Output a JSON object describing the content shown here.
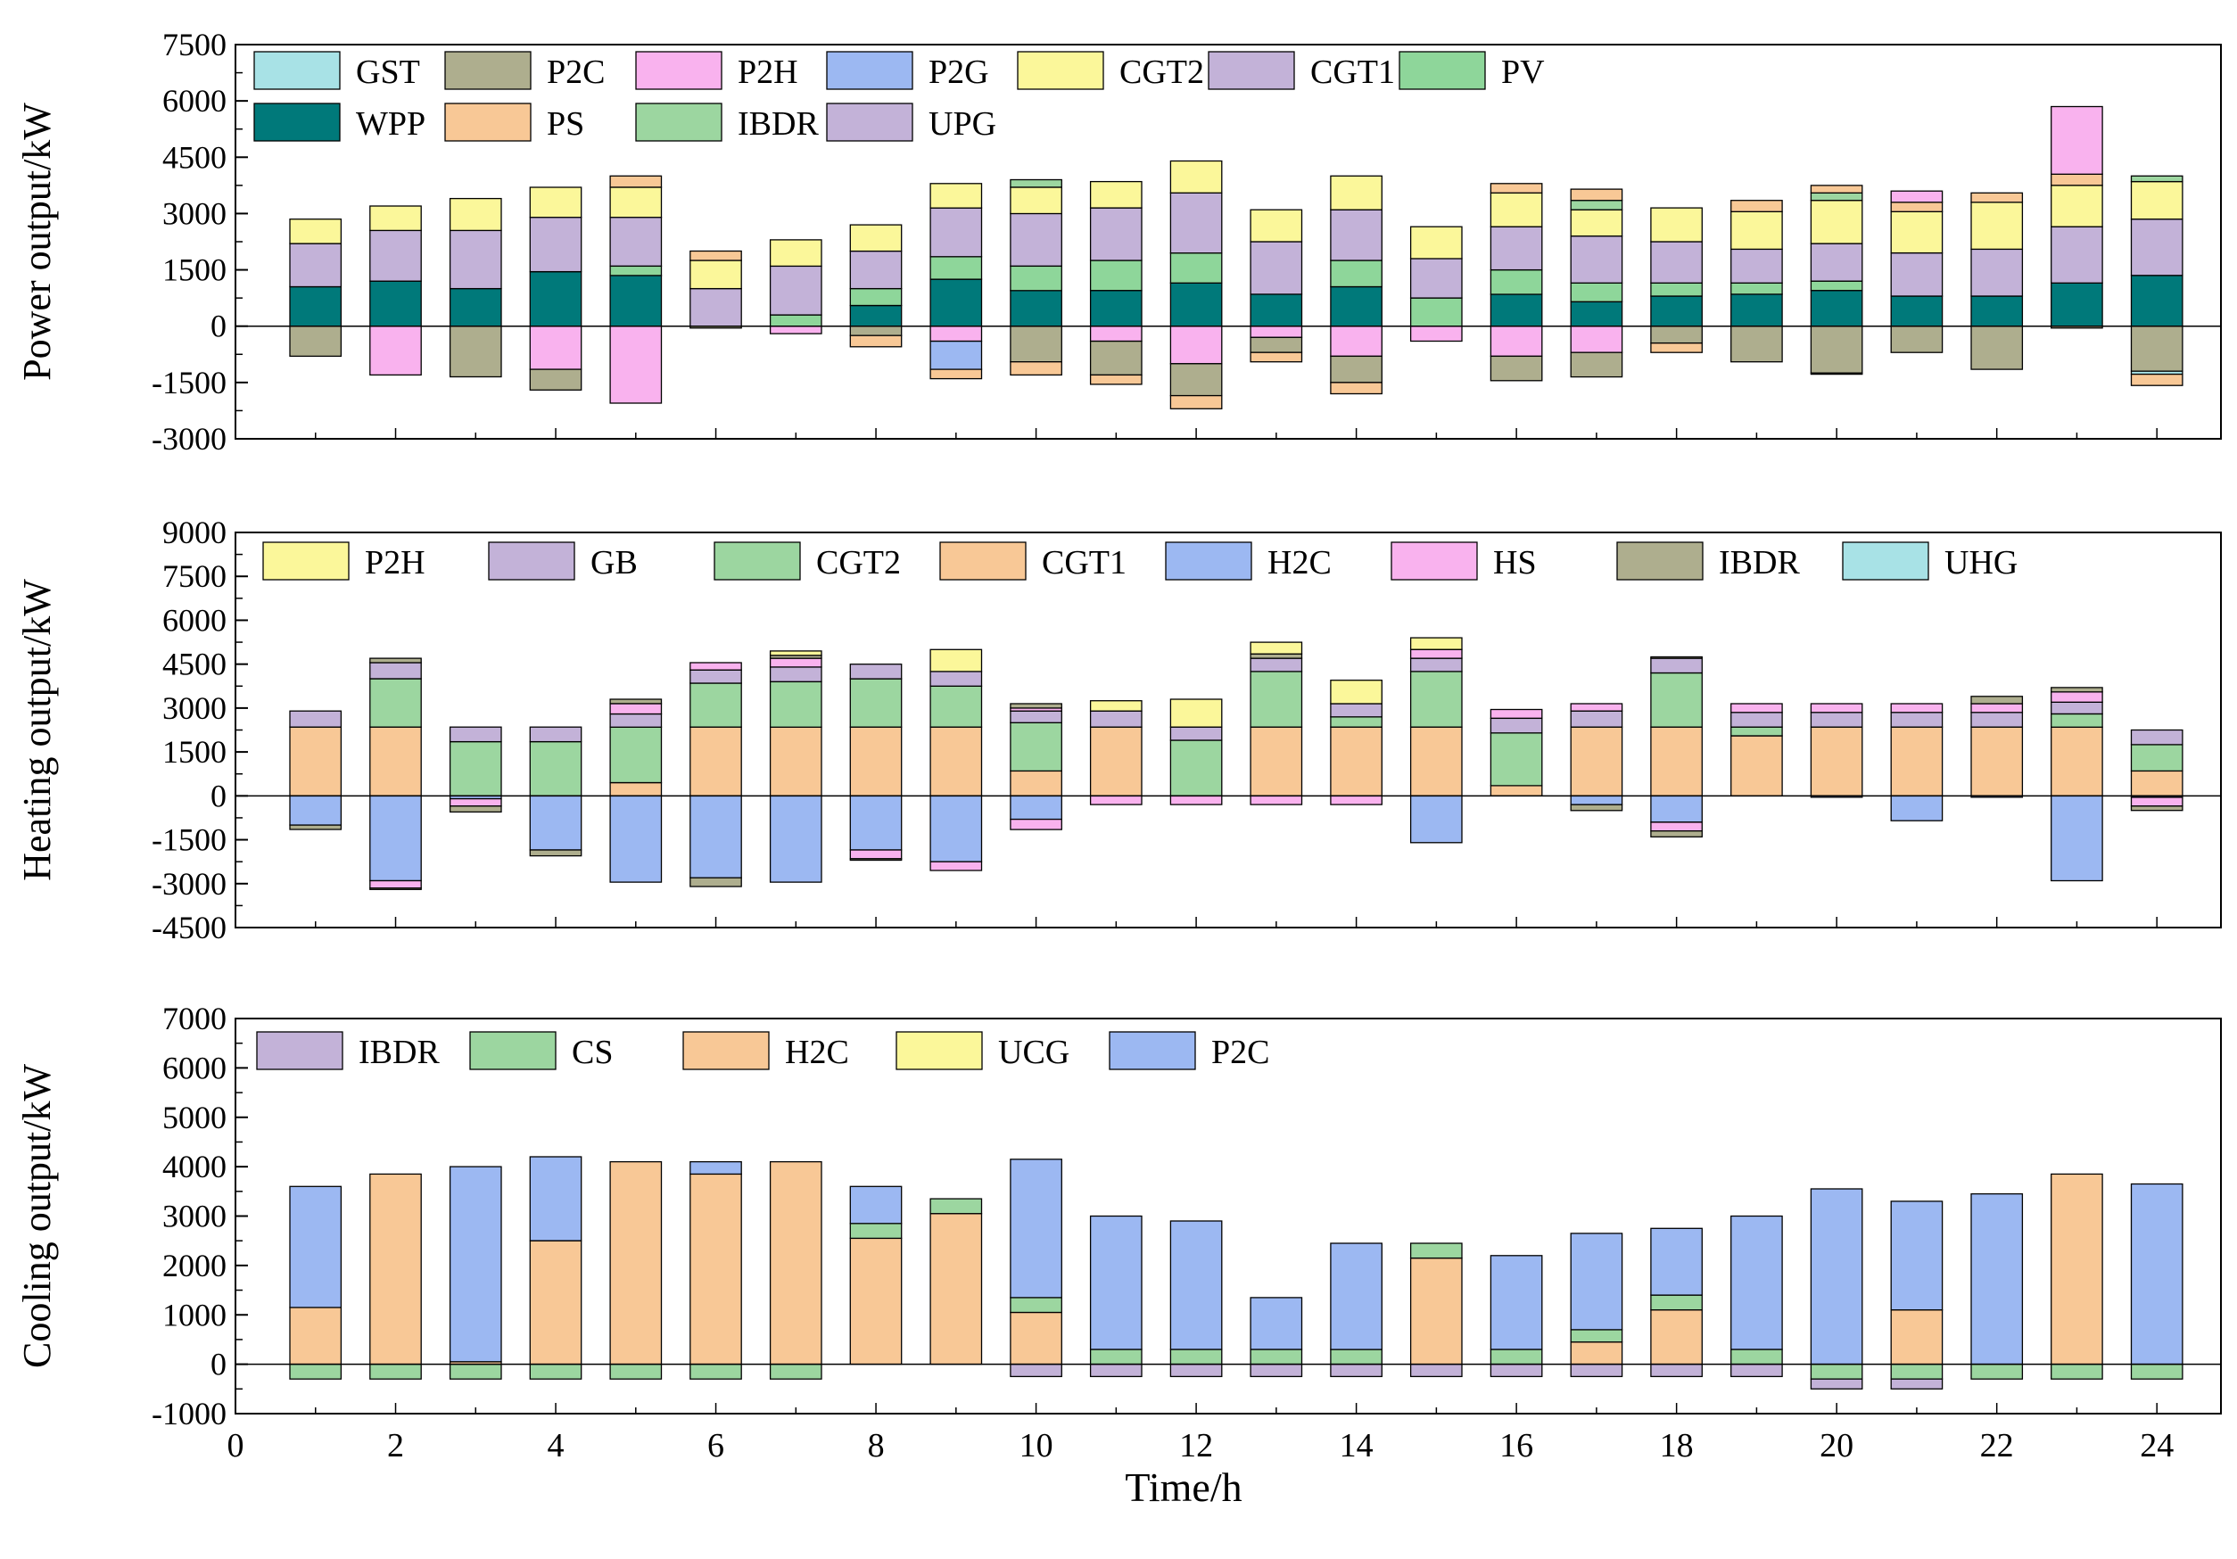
{
  "colors": {
    "GST": "#a8e2e6",
    "P2C": "#aeae8e",
    "P2H": "#f9b2ee",
    "P2G": "#9cb8f2",
    "CGT2": "#fbf79a",
    "CGT1": "#c3b2d8",
    "PV": "#8ed69a",
    "WPP": "#00797a",
    "PS": "#f8c896",
    "IBDR": "#9cd6a0",
    "UPG": "#c3b2d8",
    "H_P2H": "#fbf79a",
    "H_GB": "#c3b2d8",
    "H_CGT2": "#9cd6a0",
    "H_CGT1": "#f8c896",
    "H_H2C": "#9cb8f2",
    "H_HS": "#f9b2ee",
    "H_IBDR": "#aeae8e",
    "H_UHG": "#a8e2e6",
    "C_IBDR": "#c3b2d8",
    "C_CS": "#9cd6a0",
    "C_H2C": "#f8c896",
    "C_UCG": "#fbf79a",
    "C_P2C": "#9cb8f2"
  },
  "chart_data": [
    {
      "type": "bar",
      "id": "power",
      "title": "",
      "ylabel": "Power output/kW",
      "xlabel": "",
      "ylim": [
        -3000,
        7500
      ],
      "yticks": [
        -3000,
        -1500,
        0,
        1500,
        3000,
        4500,
        6000,
        7500
      ],
      "x": [
        1,
        2,
        3,
        4,
        5,
        6,
        7,
        8,
        9,
        10,
        11,
        12,
        13,
        14,
        15,
        16,
        17,
        18,
        19,
        20,
        21,
        22,
        23,
        24
      ],
      "legend": [
        {
          "name": "GST",
          "color": "GST"
        },
        {
          "name": "P2C",
          "color": "P2C"
        },
        {
          "name": "P2H",
          "color": "P2H"
        },
        {
          "name": "P2G",
          "color": "P2G"
        },
        {
          "name": "CGT2",
          "color": "CGT2"
        },
        {
          "name": "CGT1",
          "color": "CGT1"
        },
        {
          "name": "PV",
          "color": "PV"
        },
        {
          "name": "WPP",
          "color": "WPP"
        },
        {
          "name": "PS",
          "color": "PS"
        },
        {
          "name": "IBDR",
          "color": "IBDR"
        },
        {
          "name": "UPG",
          "color": "UPG"
        }
      ],
      "positive_series": [
        {
          "name": "WPP",
          "color": "WPP",
          "values": [
            1050,
            1200,
            1000,
            1450,
            1350,
            0,
            0,
            550,
            1250,
            950,
            950,
            1150,
            850,
            1050,
            0,
            850,
            650,
            800,
            850,
            950,
            800,
            800,
            1150,
            1350
          ]
        },
        {
          "name": "PV",
          "color": "PV",
          "values": [
            0,
            0,
            0,
            0,
            250,
            0,
            300,
            450,
            600,
            650,
            800,
            800,
            0,
            700,
            750,
            650,
            500,
            350,
            300,
            250,
            0,
            0,
            0,
            0
          ]
        },
        {
          "name": "UPG",
          "color": "UPG",
          "values": [
            1150,
            1350,
            1550,
            1450,
            1300,
            1000,
            1300,
            1000,
            1300,
            1400,
            1400,
            1600,
            1400,
            1350,
            1050,
            1150,
            1250,
            1100,
            900,
            1000,
            1150,
            1250,
            1500,
            1500
          ]
        },
        {
          "name": "CGT2",
          "color": "CGT2",
          "values": [
            650,
            650,
            850,
            800,
            800,
            750,
            700,
            700,
            650,
            700,
            700,
            850,
            850,
            900,
            850,
            900,
            700,
            900,
            1000,
            1150,
            1100,
            1250,
            1100,
            1000
          ]
        },
        {
          "name": "IBDR",
          "color": "IBDR",
          "values": [
            0,
            0,
            0,
            0,
            0,
            0,
            0,
            0,
            0,
            200,
            0,
            0,
            0,
            0,
            0,
            0,
            250,
            0,
            0,
            200,
            0,
            0,
            0,
            150
          ]
        },
        {
          "name": "PS",
          "color": "PS",
          "values": [
            0,
            0,
            0,
            0,
            300,
            250,
            0,
            0,
            0,
            0,
            0,
            0,
            0,
            0,
            0,
            250,
            300,
            0,
            300,
            200,
            250,
            250,
            300,
            0
          ]
        },
        {
          "name": "P2H",
          "color": "P2H",
          "values": [
            0,
            0,
            0,
            0,
            0,
            0,
            0,
            0,
            0,
            0,
            0,
            0,
            0,
            0,
            0,
            0,
            0,
            0,
            0,
            0,
            300,
            0,
            1800,
            0
          ]
        }
      ],
      "negative_series": [
        {
          "name": "P2H",
          "color": "P2H",
          "values": [
            0,
            -1300,
            0,
            -1150,
            -2050,
            0,
            -200,
            0,
            -400,
            0,
            -400,
            -1000,
            -300,
            -800,
            -400,
            -800,
            -700,
            0,
            0,
            0,
            0,
            0,
            0,
            0
          ]
        },
        {
          "name": "P2G",
          "color": "P2G",
          "values": [
            0,
            0,
            0,
            0,
            0,
            0,
            0,
            0,
            -750,
            0,
            0,
            0,
            0,
            0,
            0,
            0,
            0,
            0,
            0,
            0,
            0,
            0,
            0,
            0
          ]
        },
        {
          "name": "P2C",
          "color": "P2C",
          "values": [
            -800,
            0,
            -1350,
            -550,
            0,
            -50,
            0,
            -250,
            0,
            -950,
            -900,
            -850,
            -400,
            -700,
            0,
            -650,
            -650,
            -450,
            -950,
            -1250,
            -700,
            -1150,
            -50,
            -1200
          ]
        },
        {
          "name": "GST",
          "color": "GST",
          "values": [
            0,
            0,
            0,
            0,
            0,
            0,
            0,
            0,
            0,
            0,
            0,
            0,
            0,
            0,
            0,
            0,
            0,
            0,
            0,
            -30,
            0,
            0,
            0,
            -80
          ]
        },
        {
          "name": "PS",
          "color": "PS",
          "values": [
            0,
            0,
            0,
            0,
            0,
            0,
            0,
            -300,
            -250,
            -350,
            -250,
            -350,
            -250,
            -300,
            0,
            0,
            0,
            -250,
            0,
            0,
            0,
            0,
            0,
            -300
          ]
        }
      ]
    },
    {
      "type": "bar",
      "id": "heating",
      "title": "",
      "ylabel": "Heating output/kW",
      "xlabel": "",
      "ylim": [
        -4500,
        9000
      ],
      "yticks": [
        -4500,
        -3000,
        -1500,
        0,
        1500,
        3000,
        4500,
        6000,
        7500,
        9000
      ],
      "x": [
        1,
        2,
        3,
        4,
        5,
        6,
        7,
        8,
        9,
        10,
        11,
        12,
        13,
        14,
        15,
        16,
        17,
        18,
        19,
        20,
        21,
        22,
        23,
        24
      ],
      "legend": [
        {
          "name": "P2H",
          "color": "H_P2H"
        },
        {
          "name": "GB",
          "color": "H_GB"
        },
        {
          "name": "CGT2",
          "color": "H_CGT2"
        },
        {
          "name": "CGT1",
          "color": "H_CGT1"
        },
        {
          "name": "H2C",
          "color": "H_H2C"
        },
        {
          "name": "HS",
          "color": "H_HS"
        },
        {
          "name": "IBDR",
          "color": "H_IBDR"
        },
        {
          "name": "UHG",
          "color": "H_UHG"
        }
      ],
      "positive_series": [
        {
          "name": "CGT1",
          "color": "H_CGT1",
          "values": [
            2350,
            2350,
            0,
            0,
            450,
            2350,
            2350,
            2350,
            2350,
            850,
            2350,
            0,
            2350,
            2350,
            2350,
            350,
            2350,
            2350,
            2050,
            2350,
            2350,
            2350,
            2350,
            850
          ]
        },
        {
          "name": "CGT2",
          "color": "H_CGT2",
          "values": [
            0,
            1650,
            1850,
            1850,
            1900,
            1500,
            1550,
            1650,
            1400,
            1650,
            0,
            1900,
            1900,
            350,
            1900,
            1800,
            0,
            1850,
            300,
            0,
            0,
            0,
            450,
            900
          ]
        },
        {
          "name": "GB",
          "color": "H_GB",
          "values": [
            550,
            550,
            500,
            500,
            450,
            450,
            500,
            500,
            500,
            400,
            550,
            450,
            450,
            450,
            450,
            500,
            550,
            500,
            500,
            500,
            500,
            500,
            400,
            500
          ]
        },
        {
          "name": "HS",
          "color": "H_HS",
          "values": [
            0,
            0,
            0,
            0,
            350,
            250,
            300,
            0,
            0,
            100,
            0,
            0,
            0,
            0,
            300,
            300,
            250,
            0,
            300,
            300,
            300,
            300,
            350,
            0
          ]
        },
        {
          "name": "IBDR",
          "color": "H_IBDR",
          "values": [
            0,
            150,
            0,
            0,
            150,
            0,
            100,
            0,
            0,
            150,
            0,
            0,
            150,
            0,
            0,
            0,
            0,
            50,
            0,
            0,
            0,
            250,
            150,
            0
          ]
        },
        {
          "name": "P2H",
          "color": "H_P2H",
          "values": [
            0,
            0,
            0,
            0,
            0,
            0,
            150,
            0,
            750,
            0,
            350,
            950,
            400,
            800,
            400,
            0,
            0,
            0,
            0,
            0,
            0,
            0,
            0,
            0
          ]
        }
      ],
      "negative_series": [
        {
          "name": "H2C",
          "color": "H_H2C",
          "values": [
            -1000,
            -2900,
            -100,
            -1850,
            -2950,
            -2800,
            -2950,
            -1850,
            -2250,
            -800,
            0,
            0,
            0,
            0,
            -1600,
            0,
            -300,
            -900,
            0,
            -50,
            -850,
            -50,
            -2900,
            -50
          ]
        },
        {
          "name": "HS",
          "color": "H_HS",
          "values": [
            0,
            -250,
            -250,
            0,
            0,
            0,
            0,
            -300,
            -300,
            -350,
            -300,
            -300,
            -300,
            -300,
            0,
            0,
            0,
            -300,
            0,
            0,
            0,
            0,
            0,
            -300
          ]
        },
        {
          "name": "IBDR",
          "color": "H_IBDR",
          "values": [
            -150,
            -50,
            -200,
            -200,
            0,
            -300,
            0,
            -50,
            0,
            0,
            0,
            0,
            0,
            0,
            0,
            0,
            -200,
            -200,
            0,
            0,
            0,
            0,
            0,
            -150
          ]
        }
      ]
    },
    {
      "type": "bar",
      "id": "cooling",
      "title": "",
      "ylabel": "Cooling output/kW",
      "xlabel": "Time/h",
      "ylim": [
        -1000,
        7000
      ],
      "yticks": [
        -1000,
        0,
        1000,
        2000,
        3000,
        4000,
        5000,
        6000,
        7000
      ],
      "xticks": [
        0,
        2,
        4,
        6,
        8,
        10,
        12,
        14,
        16,
        18,
        20,
        22,
        24
      ],
      "x": [
        1,
        2,
        3,
        4,
        5,
        6,
        7,
        8,
        9,
        10,
        11,
        12,
        13,
        14,
        15,
        16,
        17,
        18,
        19,
        20,
        21,
        22,
        23,
        24
      ],
      "legend": [
        {
          "name": "IBDR",
          "color": "C_IBDR"
        },
        {
          "name": "CS",
          "color": "C_CS"
        },
        {
          "name": "H2C",
          "color": "C_H2C"
        },
        {
          "name": "UCG",
          "color": "C_UCG"
        },
        {
          "name": "P2C",
          "color": "C_P2C"
        }
      ],
      "positive_series": [
        {
          "name": "H2C",
          "color": "C_H2C",
          "values": [
            1150,
            3850,
            50,
            2500,
            4100,
            3850,
            4100,
            2550,
            3050,
            1050,
            0,
            0,
            0,
            0,
            2150,
            0,
            450,
            1100,
            0,
            0,
            1100,
            0,
            3850,
            0
          ]
        },
        {
          "name": "CS",
          "color": "C_CS",
          "values": [
            0,
            0,
            0,
            0,
            0,
            0,
            0,
            300,
            300,
            300,
            300,
            300,
            300,
            300,
            300,
            300,
            250,
            300,
            300,
            0,
            0,
            0,
            0,
            0
          ]
        },
        {
          "name": "P2C",
          "color": "C_P2C",
          "values": [
            2450,
            0,
            3950,
            1700,
            0,
            250,
            0,
            750,
            0,
            2800,
            2700,
            2600,
            1050,
            2150,
            0,
            1900,
            1950,
            1350,
            2700,
            3550,
            2200,
            3450,
            0,
            3650
          ]
        }
      ],
      "negative_series": [
        {
          "name": "CS",
          "color": "C_CS",
          "values": [
            -300,
            -300,
            -300,
            -300,
            -300,
            -300,
            -300,
            0,
            0,
            0,
            0,
            0,
            0,
            0,
            0,
            0,
            0,
            0,
            0,
            -300,
            -300,
            -300,
            -300,
            -300
          ]
        },
        {
          "name": "IBDR",
          "color": "C_IBDR",
          "values": [
            0,
            0,
            0,
            0,
            0,
            0,
            0,
            0,
            0,
            -250,
            -250,
            -250,
            -250,
            -250,
            -250,
            -250,
            -250,
            -250,
            -250,
            -200,
            -200,
            0,
            0,
            0
          ]
        }
      ]
    }
  ]
}
